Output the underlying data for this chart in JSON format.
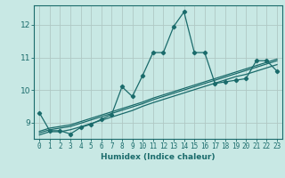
{
  "xlabel": "Humidex (Indice chaleur)",
  "xlim": [
    -0.5,
    23.5
  ],
  "ylim": [
    8.5,
    12.6
  ],
  "xticks": [
    0,
    1,
    2,
    3,
    4,
    5,
    6,
    7,
    8,
    9,
    10,
    11,
    12,
    13,
    14,
    15,
    16,
    17,
    18,
    19,
    20,
    21,
    22,
    23
  ],
  "yticks": [
    9,
    10,
    11,
    12
  ],
  "background_color": "#c8e8e4",
  "line_color": "#1a6b6b",
  "grid_color": "#b0c8c4",
  "line1_x": [
    0,
    1,
    2,
    3,
    4,
    5,
    6,
    7,
    8,
    9,
    10,
    11,
    12,
    13,
    14,
    15,
    16,
    17,
    18,
    19,
    20,
    21,
    22,
    23
  ],
  "line1_y": [
    9.3,
    8.75,
    8.75,
    8.65,
    8.85,
    8.95,
    9.1,
    9.25,
    10.1,
    9.8,
    10.45,
    11.15,
    11.15,
    11.95,
    12.4,
    11.15,
    11.15,
    10.2,
    10.25,
    10.3,
    10.35,
    10.9,
    10.9,
    10.58
  ],
  "line2_x": [
    0,
    1,
    2,
    3,
    4,
    5,
    6,
    7,
    8,
    9,
    10,
    11,
    12,
    13,
    14,
    15,
    16,
    17,
    18,
    19,
    20,
    21,
    22,
    23
  ],
  "line2_y": [
    8.62,
    8.72,
    8.72,
    8.78,
    8.87,
    8.97,
    9.07,
    9.17,
    9.27,
    9.37,
    9.5,
    9.61,
    9.71,
    9.81,
    9.91,
    10.01,
    10.11,
    10.21,
    10.31,
    10.41,
    10.48,
    10.58,
    10.68,
    10.78
  ],
  "line3_x": [
    0,
    1,
    2,
    3,
    4,
    5,
    6,
    7,
    8,
    9,
    10,
    11,
    12,
    13,
    14,
    15,
    16,
    17,
    18,
    19,
    20,
    21,
    22,
    23
  ],
  "line3_y": [
    8.68,
    8.78,
    8.83,
    8.88,
    8.98,
    9.08,
    9.18,
    9.28,
    9.38,
    9.48,
    9.58,
    9.7,
    9.8,
    9.9,
    10.0,
    10.1,
    10.2,
    10.3,
    10.4,
    10.5,
    10.6,
    10.7,
    10.8,
    10.9
  ],
  "line4_x": [
    0,
    1,
    2,
    3,
    4,
    5,
    6,
    7,
    8,
    9,
    10,
    11,
    12,
    13,
    14,
    15,
    16,
    17,
    18,
    19,
    20,
    21,
    22,
    23
  ],
  "line4_y": [
    8.73,
    8.83,
    8.88,
    8.93,
    9.03,
    9.13,
    9.23,
    9.33,
    9.43,
    9.53,
    9.63,
    9.75,
    9.85,
    9.95,
    10.05,
    10.15,
    10.25,
    10.35,
    10.45,
    10.55,
    10.65,
    10.75,
    10.85,
    10.95
  ]
}
